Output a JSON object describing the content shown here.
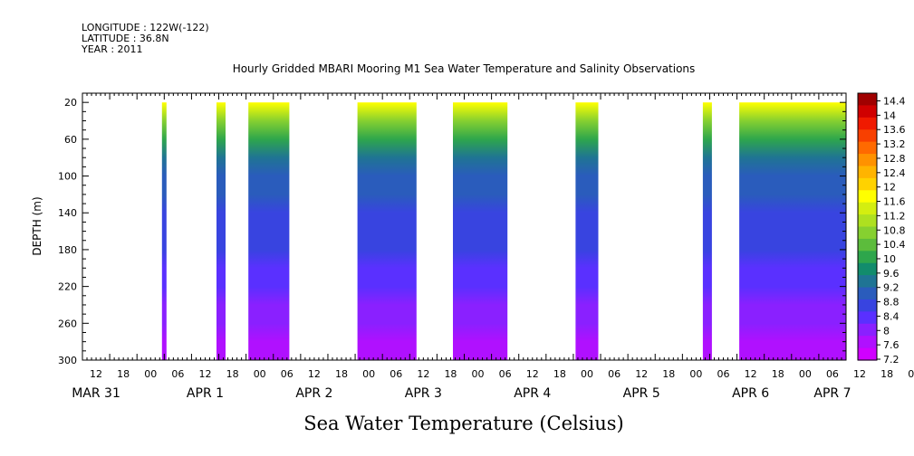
{
  "header": {
    "longitude": "LONGITUDE : 122W(-122)",
    "latitude": "LATITUDE : 36.8N",
    "year": "YEAR : 2011"
  },
  "chart_data": {
    "type": "heatmap",
    "title": "Hourly Gridded MBARI Mooring M1 Sea Water Temperature and Salinity Observations",
    "bottom_title": "Sea Water Temperature (Celsius)",
    "ylabel": "DEPTH (m)",
    "ylim": [
      300,
      10
    ],
    "y_ticks": [
      20,
      60,
      100,
      140,
      180,
      220,
      260,
      300
    ],
    "x_hour_ticks": [
      "12",
      "18",
      "00",
      "06",
      "12",
      "18",
      "00",
      "06",
      "12",
      "18",
      "00",
      "06",
      "12",
      "18",
      "00",
      "06",
      "12",
      "18",
      "00",
      "06",
      "12",
      "18",
      "00",
      "06",
      "12",
      "18",
      "00",
      "06",
      "12",
      "18",
      "00",
      "06"
    ],
    "x_date_labels": [
      "MAR 31",
      "APR 1",
      "APR 2",
      "APR 3",
      "APR 4",
      "APR 5",
      "APR 6",
      "APR 7"
    ],
    "x_range_hours": [
      0,
      168
    ],
    "data_segments_hours": [
      [
        17.5,
        18.5
      ],
      [
        29.5,
        31.5
      ],
      [
        36.5,
        45.5
      ],
      [
        60.5,
        73.5
      ],
      [
        81.5,
        93.5
      ],
      [
        108.5,
        113.5
      ],
      [
        136.5,
        138.5
      ],
      [
        144.5,
        169
      ]
    ],
    "depth_profile": {
      "depths": [
        20,
        40,
        60,
        80,
        100,
        120,
        140,
        160,
        180,
        200,
        220,
        240,
        260,
        280,
        300
      ],
      "temperatures": [
        11.9,
        10.6,
        9.9,
        9.4,
        9.0,
        8.8,
        8.6,
        8.5,
        8.35,
        8.2,
        8.05,
        7.9,
        7.7,
        7.45,
        7.3
      ]
    },
    "colorbar": {
      "labels": [
        "14.4",
        "14",
        "13.6",
        "13.2",
        "12.8",
        "12.4",
        "12",
        "11.6",
        "11.2",
        "10.8",
        "10.4",
        "10",
        "9.6",
        "9.2",
        "8.8",
        "8.4",
        "8",
        "7.6",
        "7.2"
      ],
      "colors": [
        "#a00000",
        "#d00000",
        "#f01a00",
        "#f84000",
        "#ff6a00",
        "#ff9200",
        "#ffb400",
        "#ffd200",
        "#ffff00",
        "#d4ee10",
        "#aee020",
        "#86d030",
        "#5cbc3c",
        "#2ea64c",
        "#128c6c",
        "#1f7494",
        "#2a5cbc",
        "#3844e0",
        "#5a30ff",
        "#8a20ff",
        "#b010ff",
        "#d000ff"
      ]
    }
  }
}
